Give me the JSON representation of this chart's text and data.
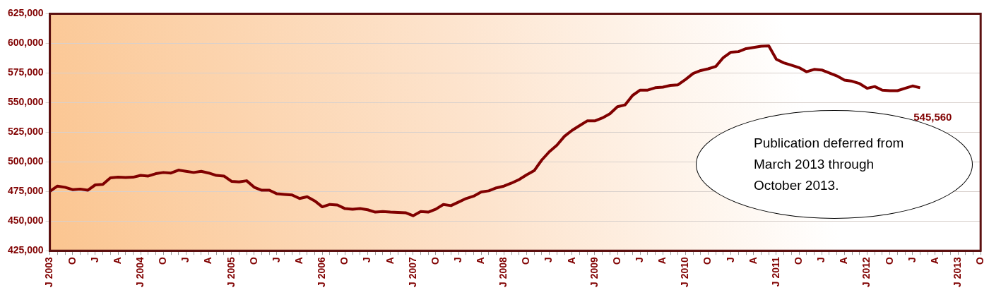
{
  "chart_data": {
    "type": "line",
    "categories": [
      "J 2003",
      null,
      null,
      "O",
      null,
      null,
      "J",
      null,
      null,
      "A",
      null,
      null,
      "J 2004",
      null,
      null,
      "O",
      null,
      null,
      "J",
      null,
      null,
      "A",
      null,
      null,
      "J 2005",
      null,
      null,
      "O",
      null,
      null,
      "J",
      null,
      null,
      "A",
      null,
      null,
      "J 2006",
      null,
      null,
      "O",
      null,
      null,
      "J",
      null,
      null,
      "A",
      null,
      null,
      "J 2007",
      null,
      null,
      "O",
      null,
      null,
      "J",
      null,
      null,
      "A",
      null,
      null,
      "J 2008",
      null,
      null,
      "O",
      null,
      null,
      "J",
      null,
      null,
      "A",
      null,
      null,
      "J 2009",
      null,
      null,
      "O",
      null,
      null,
      "J",
      null,
      null,
      "A",
      null,
      null,
      "J 2010",
      null,
      null,
      "O",
      null,
      null,
      "J",
      null,
      null,
      "A",
      null,
      null,
      "J 2011",
      null,
      null,
      "O",
      null,
      null,
      "J",
      null,
      null,
      "A",
      null,
      null,
      "J 2012",
      null,
      null,
      "O",
      null,
      null,
      "J",
      null,
      null,
      "A",
      null,
      null,
      "J 2013",
      null,
      null,
      "O"
    ],
    "values": [
      475000,
      479500,
      478500,
      476500,
      477000,
      476000,
      480500,
      481000,
      486500,
      487000,
      486800,
      487000,
      488500,
      488000,
      490000,
      491000,
      490500,
      493000,
      492000,
      491000,
      492000,
      490500,
      488500,
      488000,
      483500,
      483000,
      484000,
      478500,
      476000,
      476000,
      473000,
      472500,
      472000,
      469000,
      470500,
      467000,
      462000,
      464000,
      463500,
      460500,
      460000,
      460500,
      459500,
      457500,
      458000,
      457500,
      457300,
      457000,
      454500,
      458000,
      457500,
      460000,
      464000,
      463000,
      466000,
      469000,
      471000,
      474500,
      475500,
      478000,
      479500,
      482000,
      485000,
      489000,
      492500,
      501500,
      508500,
      514000,
      521500,
      526500,
      530500,
      534500,
      534500,
      537000,
      540500,
      546500,
      548000,
      556000,
      560500,
      560500,
      562500,
      563000,
      564500,
      565000,
      569500,
      574500,
      577000,
      578500,
      580500,
      588000,
      592500,
      593000,
      595500,
      596500,
      597500,
      597800,
      586500,
      583500,
      581500,
      579500,
      576000,
      578000,
      577500,
      575000,
      572500,
      569000,
      568000,
      566000,
      562000,
      563500,
      560500,
      560000,
      560000,
      562000,
      564000,
      562500,
      null,
      null,
      null,
      null,
      null,
      null,
      null,
      null
    ],
    "color": "#800000",
    "ylim": [
      425000,
      625000
    ],
    "yticks": [
      {
        "value": 425000,
        "label": "425,000"
      },
      {
        "value": 450000,
        "label": "450,000"
      },
      {
        "value": 475000,
        "label": "475,000"
      },
      {
        "value": 500000,
        "label": "500,000"
      },
      {
        "value": 525000,
        "label": "525,000"
      },
      {
        "value": 550000,
        "label": "550,000"
      },
      {
        "value": 575000,
        "label": "575,000"
      },
      {
        "value": 600000,
        "label": "600,000"
      },
      {
        "value": 625000,
        "label": "625,000"
      }
    ],
    "grid": "y",
    "legend": false,
    "annotations": [
      "545,560",
      "Publication deferred from March 2013 through October 2013."
    ]
  }
}
